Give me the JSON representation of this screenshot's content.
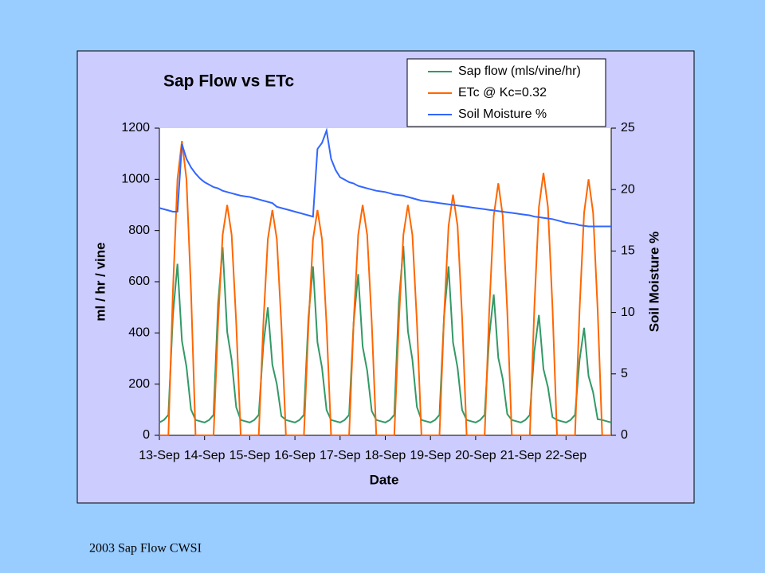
{
  "chart_data": {
    "type": "line",
    "title": "Sap Flow vs ETc",
    "x_label": "Date",
    "y_label": "ml / hr / vine",
    "y2_label": "Soil Moisture %",
    "x": [
      13,
      13.1,
      13.2,
      13.3,
      13.4,
      13.5,
      13.6,
      13.7,
      13.8,
      13.9,
      14,
      14.1,
      14.2,
      14.3,
      14.4,
      14.5,
      14.6,
      14.7,
      14.8,
      14.9,
      15,
      15.1,
      15.2,
      15.3,
      15.4,
      15.5,
      15.6,
      15.7,
      15.8,
      15.9,
      16,
      16.1,
      16.2,
      16.3,
      16.4,
      16.5,
      16.6,
      16.7,
      16.8,
      16.9,
      17,
      17.1,
      17.2,
      17.3,
      17.4,
      17.5,
      17.6,
      17.7,
      17.8,
      17.9,
      18,
      18.1,
      18.2,
      18.3,
      18.4,
      18.5,
      18.6,
      18.7,
      18.8,
      18.9,
      19,
      19.1,
      19.2,
      19.3,
      19.4,
      19.5,
      19.6,
      19.7,
      19.8,
      19.9,
      20,
      20.1,
      20.2,
      20.3,
      20.4,
      20.5,
      20.6,
      20.7,
      20.8,
      20.9,
      21,
      21.1,
      21.2,
      21.3,
      21.4,
      21.5,
      21.6,
      21.7,
      21.8,
      21.9,
      22,
      22.1,
      22.2,
      22.3,
      22.4,
      22.5,
      22.6,
      22.7,
      22.8,
      22.9,
      23
    ],
    "series": [
      {
        "name": "Sap flow (mls/vine/hr)",
        "color": "#339966",
        "values": [
          50,
          60,
          80,
          469,
          670,
          369,
          268,
          101,
          60,
          55,
          50,
          60,
          80,
          515,
          735,
          404,
          294,
          110,
          60,
          55,
          50,
          60,
          80,
          350,
          500,
          275,
          200,
          75,
          60,
          55,
          50,
          60,
          80,
          462,
          660,
          363,
          264,
          99,
          60,
          55,
          50,
          60,
          80,
          441,
          630,
          347,
          252,
          95,
          60,
          55,
          50,
          60,
          80,
          518,
          740,
          407,
          296,
          111,
          60,
          55,
          50,
          60,
          80,
          462,
          660,
          363,
          264,
          99,
          60,
          55,
          50,
          60,
          80,
          385,
          550,
          303,
          220,
          83,
          60,
          55,
          50,
          60,
          80,
          329,
          470,
          259,
          188,
          71,
          60,
          55,
          50,
          60,
          80,
          294,
          420,
          231,
          168,
          63,
          60,
          55,
          50
        ]
      },
      {
        "name": "ETc @ Kc=0.32",
        "color": "#ff6600",
        "values": [
          0,
          0,
          0,
          564,
          1000,
          1150,
          1000,
          564,
          0,
          0,
          0,
          0,
          0,
          441,
          783,
          900,
          783,
          441,
          0,
          0,
          0,
          0,
          0,
          431,
          766,
          880,
          766,
          431,
          0,
          0,
          0,
          0,
          0,
          431,
          766,
          880,
          766,
          431,
          0,
          0,
          0,
          0,
          0,
          441,
          783,
          900,
          783,
          441,
          0,
          0,
          0,
          0,
          0,
          441,
          783,
          900,
          783,
          441,
          0,
          0,
          0,
          0,
          0,
          461,
          818,
          940,
          818,
          461,
          0,
          0,
          0,
          0,
          0,
          483,
          857,
          985,
          857,
          483,
          0,
          0,
          0,
          0,
          0,
          502,
          892,
          1025,
          892,
          502,
          0,
          0,
          0,
          0,
          0,
          490,
          870,
          1000,
          870,
          490,
          0,
          0,
          0
        ]
      },
      {
        "name": "Soil Moisture %",
        "color": "#3366ff",
        "axis": "y2",
        "values": [
          18.5,
          18.4,
          18.3,
          18.2,
          18.2,
          23.7,
          22.5,
          21.8,
          21.3,
          20.9,
          20.6,
          20.4,
          20.2,
          20.1,
          19.9,
          19.8,
          19.7,
          19.6,
          19.5,
          19.45,
          19.4,
          19.3,
          19.2,
          19.1,
          19.0,
          18.9,
          18.6,
          18.5,
          18.4,
          18.3,
          18.2,
          18.1,
          18.0,
          17.9,
          17.8,
          23.3,
          23.8,
          24.8,
          22.5,
          21.6,
          21.0,
          20.8,
          20.6,
          20.5,
          20.3,
          20.2,
          20.1,
          20.0,
          19.9,
          19.85,
          19.8,
          19.7,
          19.6,
          19.55,
          19.5,
          19.4,
          19.3,
          19.2,
          19.1,
          19.05,
          19.0,
          18.95,
          18.9,
          18.85,
          18.8,
          18.75,
          18.7,
          18.65,
          18.6,
          18.55,
          18.5,
          18.45,
          18.4,
          18.35,
          18.3,
          18.25,
          18.2,
          18.15,
          18.1,
          18.05,
          18.0,
          17.95,
          17.9,
          17.8,
          17.75,
          17.7,
          17.65,
          17.6,
          17.5,
          17.4,
          17.3,
          17.25,
          17.2,
          17.1,
          17.05,
          17.0,
          17.0,
          17.0,
          17.0,
          17.0,
          17.0
        ]
      }
    ],
    "xlim": [
      13,
      23
    ],
    "xticks": [
      {
        "value": 13,
        "label": "13-Sep"
      },
      {
        "value": 14,
        "label": "14-Sep"
      },
      {
        "value": 15,
        "label": "15-Sep"
      },
      {
        "value": 16,
        "label": "16-Sep"
      },
      {
        "value": 17,
        "label": "17-Sep"
      },
      {
        "value": 18,
        "label": "18-Sep"
      },
      {
        "value": 19,
        "label": "19-Sep"
      },
      {
        "value": 20,
        "label": "20-Sep"
      },
      {
        "value": 21,
        "label": "21-Sep"
      },
      {
        "value": 22,
        "label": "22-Sep"
      }
    ],
    "ylim": [
      0,
      1200
    ],
    "yticks": [
      0,
      200,
      400,
      600,
      800,
      1000,
      1200
    ],
    "y2lim": [
      0,
      25
    ],
    "y2ticks": [
      0,
      5,
      10,
      15,
      20,
      25
    ],
    "legend": "top-right"
  },
  "footer": "2003 Sap Flow CWSI"
}
